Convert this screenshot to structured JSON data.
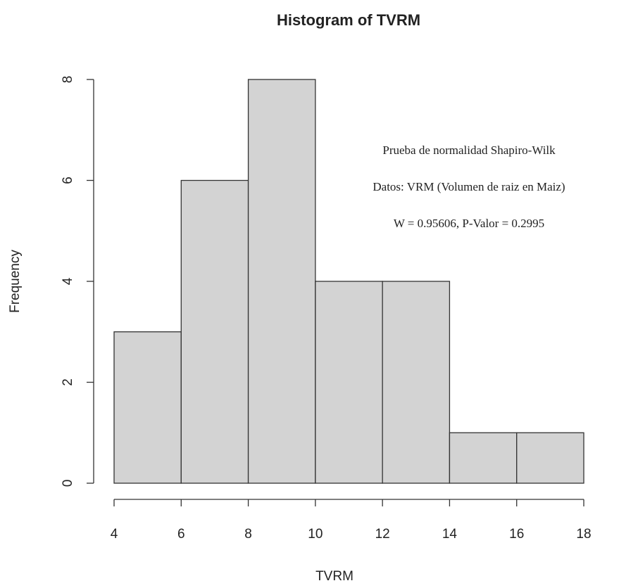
{
  "chart_data": {
    "type": "histogram",
    "title": "Histogram of TVRM",
    "xlabel": "TVRM",
    "ylabel": "Frequency",
    "bins": [
      4,
      6,
      8,
      10,
      12,
      14,
      16,
      18
    ],
    "values": [
      3,
      6,
      8,
      4,
      4,
      1,
      1
    ],
    "color": "#d3d3d3",
    "xlim": [
      4,
      18
    ],
    "xticks": [
      4,
      6,
      8,
      10,
      12,
      14,
      16,
      18
    ],
    "ylim": [
      0,
      8
    ],
    "yticks": [
      0,
      2,
      4,
      6,
      8
    ],
    "annotations": [
      "Prueba de normalidad Shapiro-Wilk",
      "Datos: VRM (Volumen de raiz en Maiz)",
      "W = 0.95606,  P-Valor = 0.2995"
    ]
  }
}
